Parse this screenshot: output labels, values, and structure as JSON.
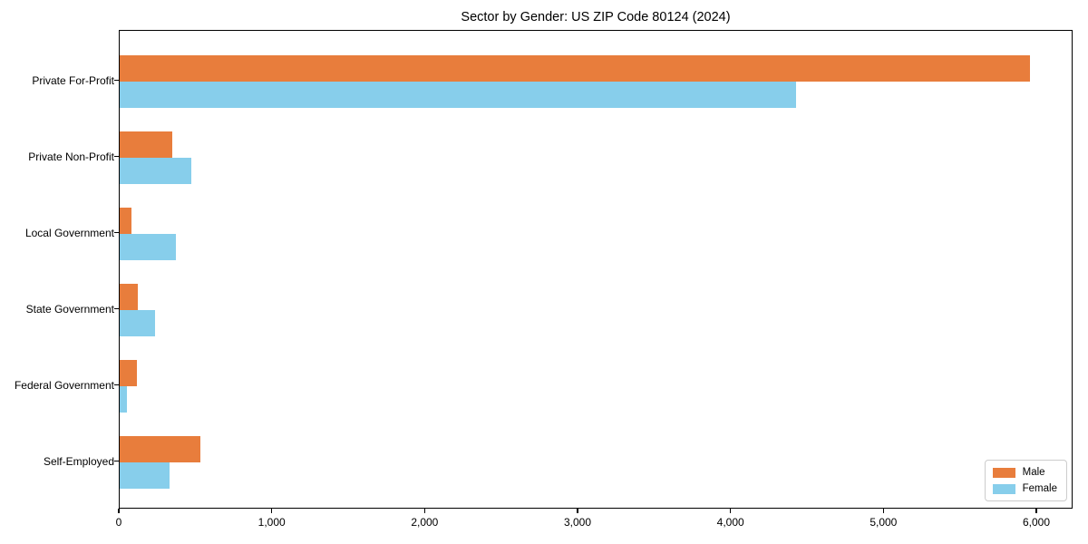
{
  "title": "Sector by Gender: US ZIP Code 80124 (2024)",
  "chart_data": {
    "type": "bar",
    "orientation": "horizontal",
    "title": "Sector by Gender: US ZIP Code 80124 (2024)",
    "xlabel": "",
    "ylabel": "",
    "categories": [
      "Private For-Profit",
      "Private Non-Profit",
      "Local Government",
      "State Government",
      "Federal Government",
      "Self-Employed"
    ],
    "series": [
      {
        "name": "Male",
        "color": "#e87d3c",
        "values": [
          5950,
          345,
          80,
          120,
          110,
          530
        ]
      },
      {
        "name": "Female",
        "color": "#87ceeb",
        "values": [
          4420,
          470,
          370,
          230,
          45,
          325
        ]
      }
    ],
    "xlim": [
      0,
      6000
    ],
    "x_ticks": [
      0,
      1000,
      2000,
      3000,
      4000,
      5000,
      6000
    ],
    "x_tick_labels": [
      "0",
      "1,000",
      "2,000",
      "3,000",
      "4,000",
      "5,000",
      "6,000"
    ],
    "grid": false,
    "legend": {
      "position": "lower right",
      "labels": [
        "Male",
        "Female"
      ]
    }
  }
}
